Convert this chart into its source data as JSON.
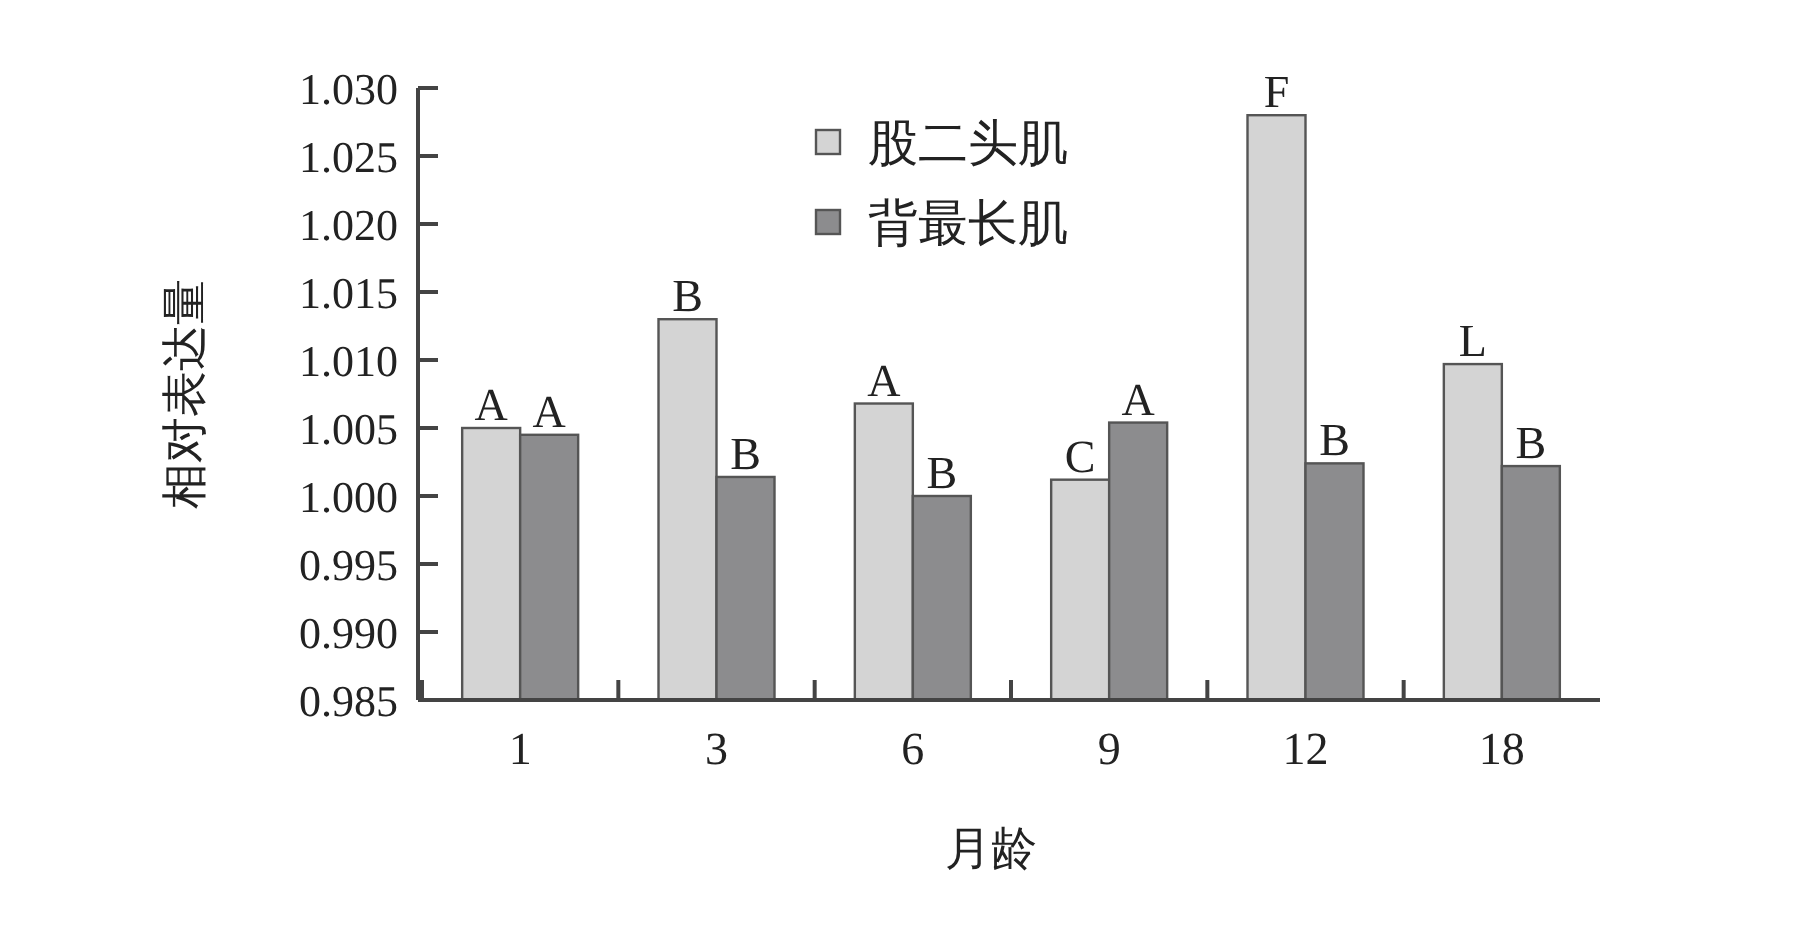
{
  "chart_data": {
    "type": "bar",
    "xlabel": "月龄",
    "ylabel": "相对表达量",
    "categories": [
      "1",
      "3",
      "6",
      "9",
      "12",
      "18"
    ],
    "series": [
      {
        "name": "股二头肌",
        "color": "#d4d4d4",
        "values": [
          1.005,
          1.013,
          1.0068,
          1.0012,
          1.028,
          1.0097
        ]
      },
      {
        "name": "背最长肌",
        "color": "#8c8c8e",
        "values": [
          1.0045,
          1.0014,
          1.0,
          1.0054,
          1.0024,
          1.0022
        ]
      }
    ],
    "ylim": [
      0.985,
      1.03
    ],
    "yticks": [
      {
        "value": 0.985,
        "label": "0.985"
      },
      {
        "value": 0.99,
        "label": "0.990"
      },
      {
        "value": 0.995,
        "label": "0.995"
      },
      {
        "value": 1.0,
        "label": "1.000"
      },
      {
        "value": 1.005,
        "label": "1.005"
      },
      {
        "value": 1.01,
        "label": "1.010"
      },
      {
        "value": 1.015,
        "label": "1.015"
      },
      {
        "value": 1.02,
        "label": "1.020"
      },
      {
        "value": 1.025,
        "label": "1.025"
      },
      {
        "value": 1.03,
        "label": "1.030"
      }
    ],
    "grid": false,
    "legend": "top",
    "annotations": [
      {
        "text": "A",
        "x": "1",
        "y": 1.005
      },
      {
        "text": "A",
        "x": "1",
        "y": 1.0045
      },
      {
        "text": "B",
        "x": "3",
        "y": 1.013
      },
      {
        "text": "B",
        "x": "3",
        "y": 1.0014
      },
      {
        "text": "A",
        "x": "6",
        "y": 1.0068
      },
      {
        "text": "B",
        "x": "6",
        "y": 1.0
      },
      {
        "text": "C",
        "x": "9",
        "y": 1.0012
      },
      {
        "text": "A",
        "x": "9",
        "y": 1.0054
      },
      {
        "text": "F",
        "x": "12",
        "y": 1.028
      },
      {
        "text": "B",
        "x": "12",
        "y": 1.0024
      },
      {
        "text": "L",
        "x": "18",
        "y": 1.0097
      },
      {
        "text": "B",
        "x": "18",
        "y": 1.0022
      }
    ]
  }
}
